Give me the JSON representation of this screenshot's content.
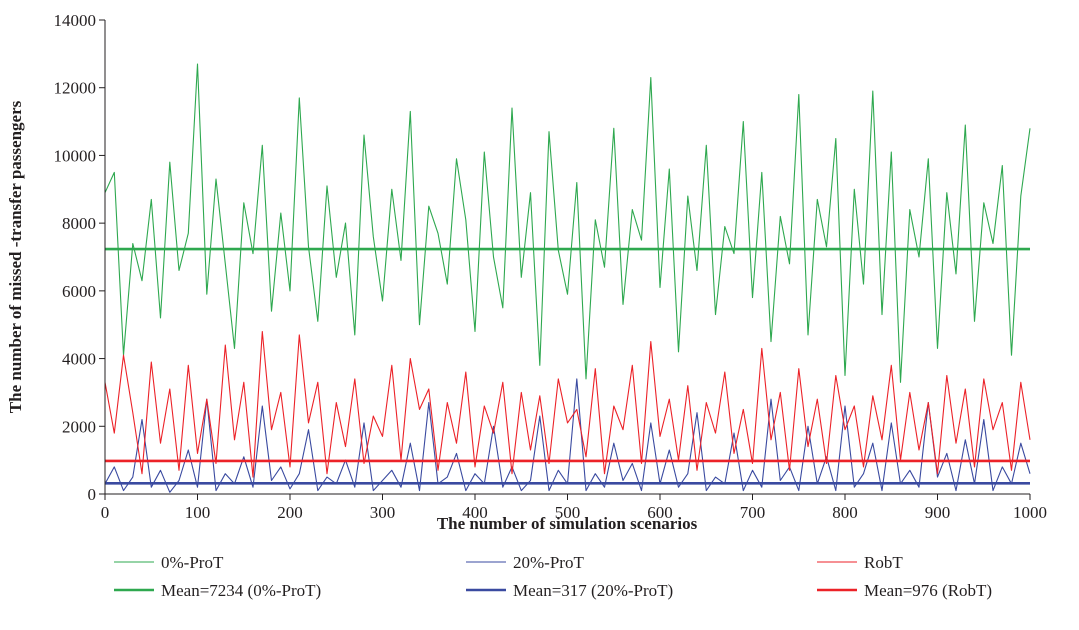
{
  "chart_data": {
    "type": "line",
    "title": "",
    "xlabel": "The number of simulation scenarios",
    "ylabel": "The number of missed -transfer passengers",
    "xlim": [
      0,
      1000
    ],
    "ylim": [
      0,
      14000
    ],
    "x_ticks": [
      0,
      100,
      200,
      300,
      400,
      500,
      600,
      700,
      800,
      900,
      1000
    ],
    "y_ticks": [
      0,
      2000,
      4000,
      6000,
      8000,
      10000,
      12000,
      14000
    ],
    "x_tick_labels": [
      "0",
      "100",
      "200",
      "300",
      "400",
      "500",
      "600",
      "700",
      "800",
      "900",
      "1000"
    ],
    "y_tick_labels": [
      "0",
      "2000",
      "4000",
      "6000",
      "8000",
      "10000",
      "12000",
      "14000"
    ],
    "grid": false,
    "legend_position": "bottom",
    "series": [
      {
        "name": "0%-ProT",
        "color": "#2ea84f",
        "style": "thin",
        "x_step": 10,
        "values": [
          8900,
          9500,
          4100,
          7400,
          6300,
          8700,
          5200,
          9800,
          6600,
          7700,
          12700,
          5900,
          9300,
          6800,
          4300,
          8600,
          7100,
          10300,
          5400,
          8300,
          6000,
          11700,
          7300,
          5100,
          9100,
          6400,
          8000,
          4700,
          10600,
          7600,
          5700,
          9000,
          6900,
          11300,
          5000,
          8500,
          7700,
          6200,
          9900,
          8100,
          4800,
          10100,
          7000,
          5500,
          11400,
          6400,
          8900,
          3800,
          10700,
          7200,
          5900,
          9200,
          3400,
          8100,
          6700,
          10800,
          5600,
          8400,
          7500,
          12300,
          6100,
          9600,
          4200,
          8800,
          6600,
          10300,
          5300,
          7900,
          7100,
          11000,
          5800,
          9500,
          4500,
          8200,
          6800,
          11800,
          4700,
          8700,
          7300,
          10500,
          3500,
          9000,
          6200,
          11900,
          5300,
          10100,
          3300,
          8400,
          7000,
          9900,
          4300,
          8900,
          6500,
          10900,
          5100,
          8600,
          7400,
          9700,
          4100,
          8800,
          10800
        ]
      },
      {
        "name": "20%-ProT",
        "color": "#3a4aa0",
        "style": "thin",
        "x_step": 10,
        "values": [
          300,
          800,
          100,
          500,
          2200,
          200,
          700,
          50,
          400,
          1300,
          200,
          2800,
          100,
          600,
          300,
          1100,
          200,
          2600,
          400,
          800,
          150,
          600,
          1900,
          100,
          500,
          300,
          1000,
          200,
          2100,
          100,
          400,
          700,
          200,
          1500,
          100,
          2700,
          300,
          500,
          1200,
          100,
          600,
          300,
          2000,
          200,
          800,
          100,
          400,
          2300,
          100,
          700,
          300,
          3400,
          100,
          600,
          200,
          1500,
          400,
          900,
          100,
          2100,
          300,
          1300,
          200,
          600,
          2400,
          100,
          500,
          300,
          1800,
          100,
          700,
          200,
          2800,
          400,
          800,
          100,
          2000,
          300,
          1100,
          100,
          2600,
          200,
          600,
          1500,
          100,
          2100,
          300,
          700,
          200,
          2700,
          500,
          1200,
          100,
          1600,
          300,
          2200,
          100,
          800,
          300,
          1500,
          600
        ]
      },
      {
        "name": "RobT",
        "color": "#ec2228",
        "style": "thin",
        "x_step": 10,
        "values": [
          3300,
          1800,
          4100,
          2400,
          600,
          3900,
          1500,
          3100,
          700,
          3800,
          1200,
          2800,
          900,
          4400,
          1600,
          3300,
          500,
          4800,
          1900,
          3000,
          800,
          4700,
          2100,
          3300,
          600,
          2700,
          1400,
          3400,
          900,
          2300,
          1700,
          3800,
          1000,
          4000,
          2500,
          3100,
          700,
          2700,
          1500,
          3600,
          800,
          2600,
          1800,
          3300,
          600,
          3000,
          1300,
          2900,
          900,
          3400,
          2100,
          2500,
          1100,
          3700,
          600,
          2600,
          1900,
          3800,
          900,
          4500,
          1700,
          2800,
          1000,
          3200,
          700,
          2700,
          1800,
          3600,
          1200,
          2500,
          900,
          4300,
          1600,
          3000,
          700,
          3700,
          1400,
          2800,
          900,
          3500,
          1900,
          2600,
          800,
          2900,
          1600,
          3800,
          1000,
          3000,
          1300,
          2700,
          600,
          3500,
          1500,
          3100,
          800,
          3400,
          1900,
          2700,
          700,
          3300,
          1600
        ]
      },
      {
        "name": "Mean=7234 (0%-ProT)",
        "color": "#2ea84f",
        "style": "thick",
        "mean": 7234,
        "x": [
          0,
          1000
        ],
        "values": [
          7234,
          7234
        ]
      },
      {
        "name": "Mean=317 (20%-ProT)",
        "color": "#3a4aa0",
        "style": "thick",
        "mean": 317,
        "x": [
          0,
          1000
        ],
        "values": [
          317,
          317
        ]
      },
      {
        "name": "Mean=976 (RobT)",
        "color": "#ec2228",
        "style": "thick",
        "mean": 976,
        "x": [
          0,
          1000
        ],
        "values": [
          976,
          976
        ]
      }
    ]
  }
}
